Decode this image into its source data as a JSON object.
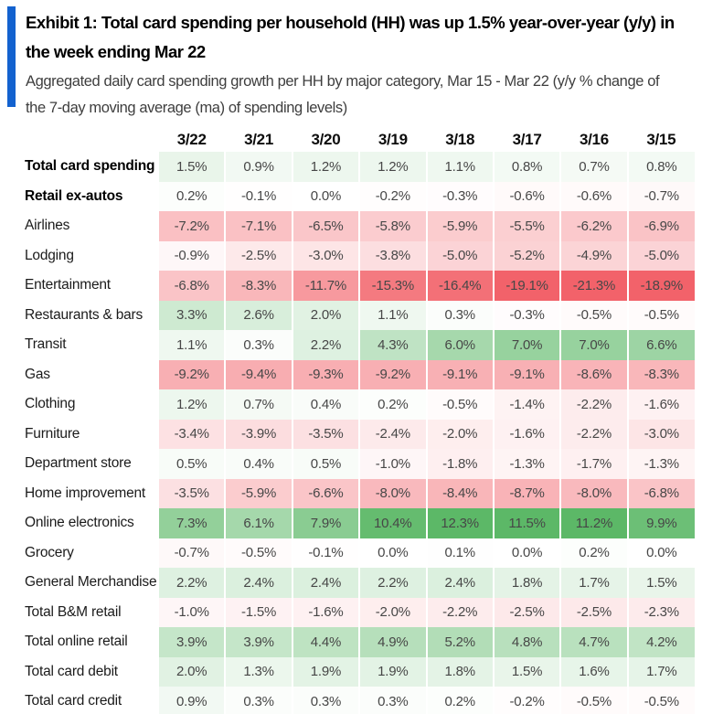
{
  "header": {
    "title": "Exhibit 1: Total card spending per household (HH) was up 1.5% year-over-year (y/y) in the week ending Mar 22",
    "subtitle": "Aggregated daily card spending growth per HH by major category, Mar 15 - Mar 22 (y/y % change of the 7-day moving average (ma) of spending levels)",
    "accent_color": "#1362cf"
  },
  "chart_data": {
    "type": "heatmap",
    "title": "Exhibit 1: Total card spending per household (HH) was up 1.5% year-over-year (y/y) in the week ending Mar 22",
    "subtitle": "Aggregated daily card spending growth per HH by major category, Mar 15 - Mar 22 (y/y % change of the 7-day moving average (ma) of spending levels)",
    "value_format": "one_decimal_percent",
    "columns": [
      "3/22",
      "3/21",
      "3/20",
      "3/19",
      "3/18",
      "3/17",
      "3/16",
      "3/15"
    ],
    "rows": [
      {
        "label": "Total card spending",
        "bold": true,
        "values": [
          1.5,
          0.9,
          1.2,
          1.2,
          1.1,
          0.8,
          0.7,
          0.8
        ]
      },
      {
        "label": "Retail ex-autos",
        "bold": true,
        "values": [
          0.2,
          -0.1,
          0.0,
          -0.2,
          -0.3,
          -0.6,
          -0.6,
          -0.7
        ]
      },
      {
        "label": "Airlines",
        "bold": false,
        "values": [
          -7.2,
          -7.1,
          -6.5,
          -5.8,
          -5.9,
          -5.5,
          -6.2,
          -6.9
        ]
      },
      {
        "label": "Lodging",
        "bold": false,
        "values": [
          -0.9,
          -2.5,
          -3.0,
          -3.8,
          -5.0,
          -5.2,
          -4.9,
          -5.0
        ]
      },
      {
        "label": "Entertainment",
        "bold": false,
        "values": [
          -6.8,
          -8.3,
          -11.7,
          -15.3,
          -16.4,
          -19.1,
          -21.3,
          -18.9
        ]
      },
      {
        "label": "Restaurants & bars",
        "bold": false,
        "values": [
          3.3,
          2.6,
          2.0,
          1.1,
          0.3,
          -0.3,
          -0.5,
          -0.5
        ]
      },
      {
        "label": "Transit",
        "bold": false,
        "values": [
          1.1,
          0.3,
          2.2,
          4.3,
          6.0,
          7.0,
          7.0,
          6.6
        ]
      },
      {
        "label": "Gas",
        "bold": false,
        "values": [
          -9.2,
          -9.4,
          -9.3,
          -9.2,
          -9.1,
          -9.1,
          -8.6,
          -8.3
        ]
      },
      {
        "label": "Clothing",
        "bold": false,
        "values": [
          1.2,
          0.7,
          0.4,
          0.2,
          -0.5,
          -1.4,
          -2.2,
          -1.6
        ]
      },
      {
        "label": "Furniture",
        "bold": false,
        "values": [
          -3.4,
          -3.9,
          -3.5,
          -2.4,
          -2.0,
          -1.6,
          -2.2,
          -3.0
        ]
      },
      {
        "label": "Department store",
        "bold": false,
        "values": [
          0.5,
          0.4,
          0.5,
          -1.0,
          -1.8,
          -1.3,
          -1.7,
          -1.3
        ]
      },
      {
        "label": "Home improvement",
        "bold": false,
        "values": [
          -3.5,
          -5.9,
          -6.6,
          -8.0,
          -8.4,
          -8.7,
          -8.0,
          -6.8
        ]
      },
      {
        "label": "Online electronics",
        "bold": false,
        "values": [
          7.3,
          6.1,
          7.9,
          10.4,
          12.3,
          11.5,
          11.2,
          9.9
        ]
      },
      {
        "label": "Grocery",
        "bold": false,
        "values": [
          -0.7,
          -0.5,
          -0.1,
          0.0,
          0.1,
          0.0,
          0.2,
          0.0
        ]
      },
      {
        "label": "General Merchandise",
        "bold": false,
        "values": [
          2.2,
          2.4,
          2.4,
          2.2,
          2.4,
          1.8,
          1.7,
          1.5
        ]
      },
      {
        "label": "Total B&M retail",
        "bold": false,
        "values": [
          -1.0,
          -1.5,
          -1.6,
          -2.0,
          -2.2,
          -2.5,
          -2.5,
          -2.3
        ]
      },
      {
        "label": "Total online retail",
        "bold": false,
        "values": [
          3.9,
          3.9,
          4.4,
          4.9,
          5.2,
          4.8,
          4.7,
          4.2
        ]
      },
      {
        "label": "Total card debit",
        "bold": false,
        "values": [
          2.0,
          1.3,
          1.9,
          1.9,
          1.8,
          1.5,
          1.6,
          1.7
        ]
      },
      {
        "label": "Total card credit",
        "bold": false,
        "values": [
          0.9,
          0.3,
          0.3,
          0.3,
          0.2,
          -0.2,
          -0.5,
          -0.5
        ]
      }
    ],
    "colorscale": {
      "neutral": "#ffffff",
      "positive_max": "#5cb867",
      "positive_cap": 11,
      "negative_max": "#f2626a",
      "negative_cap": 18
    },
    "legend_position": "none",
    "grid": false
  }
}
